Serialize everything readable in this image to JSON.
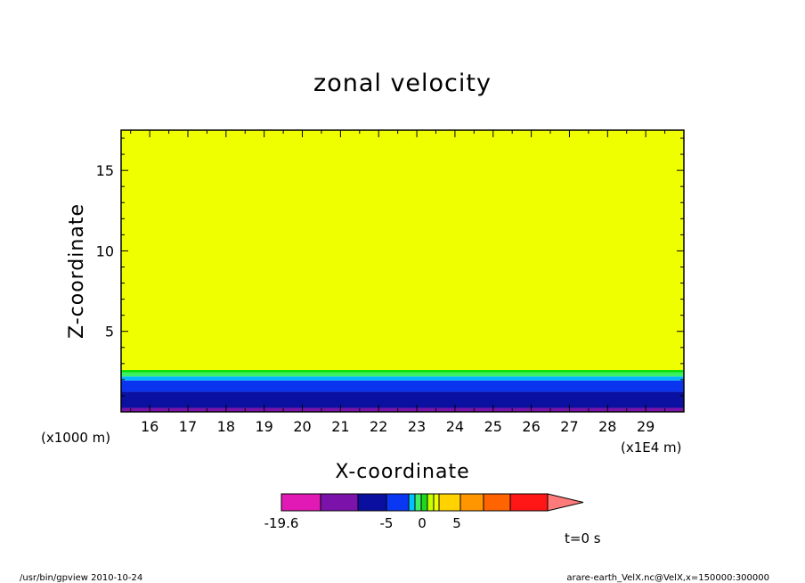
{
  "chart_data": {
    "type": "heatmap",
    "title": "zonal velocity",
    "xlabel": "X-coordinate",
    "ylabel": "Z-coordinate",
    "x_scale_label": "(x1E4 m)",
    "y_scale_label": "(x1000 m)",
    "xlim": [
      15.25,
      30.0
    ],
    "ylim": [
      0.0,
      17.5
    ],
    "x_ticks": [
      16,
      17,
      18,
      19,
      20,
      21,
      22,
      23,
      24,
      25,
      26,
      27,
      28,
      29
    ],
    "y_ticks": [
      5,
      10,
      15
    ],
    "grid": false,
    "bands": [
      {
        "z_bottom": 0.0,
        "z_top": 0.25,
        "color": "#7a14a8"
      },
      {
        "z_bottom": 0.25,
        "z_top": 1.25,
        "color": "#0a10a0"
      },
      {
        "z_bottom": 1.25,
        "z_top": 1.95,
        "color": "#0a34ee"
      },
      {
        "z_bottom": 1.95,
        "z_top": 2.2,
        "color": "#00b4ff"
      },
      {
        "z_bottom": 2.2,
        "z_top": 2.45,
        "color": "#3cf064"
      },
      {
        "z_bottom": 2.45,
        "z_top": 2.6,
        "color": "#00e000"
      },
      {
        "z_bottom": 2.6,
        "z_top": 17.5,
        "color": "#f0ff00"
      }
    ],
    "colorbar": {
      "segments": [
        {
          "color": "#e11ab6",
          "w": 44
        },
        {
          "color": "#7b12aa",
          "w": 42
        },
        {
          "color": "#0a0fa0",
          "w": 32
        },
        {
          "color": "#0a38f2",
          "w": 25
        },
        {
          "color": "#00c2ff",
          "w": 7
        },
        {
          "color": "#3ff065",
          "w": 7
        },
        {
          "color": "#1ed81e",
          "w": 7
        },
        {
          "color": "#c8ff00",
          "w": 7
        },
        {
          "color": "#f0ff00",
          "w": 6
        },
        {
          "color": "#ffd200",
          "w": 24
        },
        {
          "color": "#ff9600",
          "w": 26
        },
        {
          "color": "#ff6400",
          "w": 30
        },
        {
          "color": "#ff1616",
          "w": 42
        }
      ],
      "arrow_color": "#ff7a7a",
      "labels": [
        "-19.6",
        "-5",
        "0",
        "5"
      ]
    },
    "annotation": "t=0 s"
  },
  "footer": {
    "left": "/usr/bin/gpview   2010-10-24",
    "right": "arare-earth_VelX.nc@VelX,x=150000:300000"
  }
}
